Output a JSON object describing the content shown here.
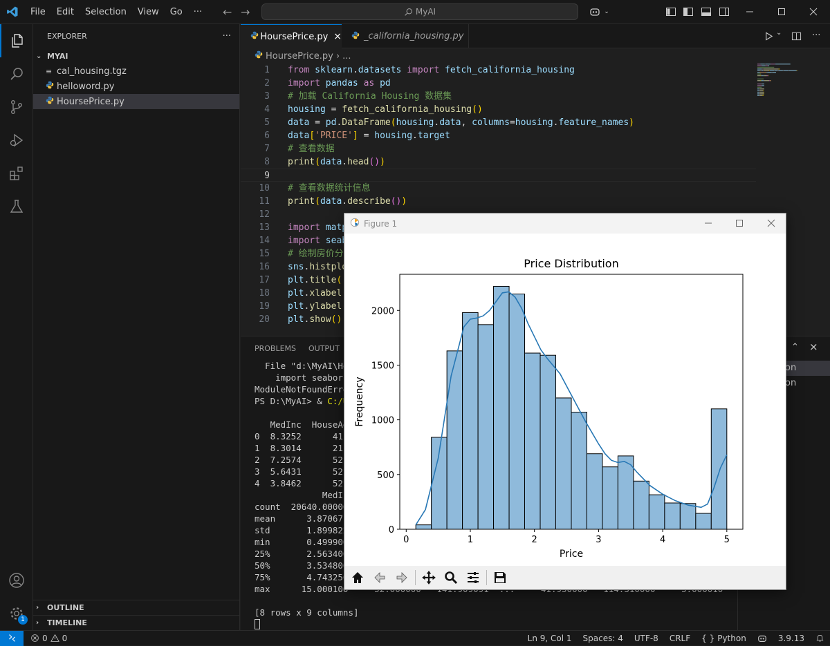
{
  "titlebar": {
    "menu": [
      "File",
      "Edit",
      "Selection",
      "View",
      "Go"
    ],
    "more": "···",
    "search": "MyAI"
  },
  "sidebar": {
    "title": "EXPLORER",
    "more": "···",
    "root": "MYAI",
    "files": [
      {
        "name": "cal_housing.tgz",
        "icon": "archive-file-icon"
      },
      {
        "name": "helloword.py",
        "icon": "python-file-icon"
      },
      {
        "name": "HoursePrice.py",
        "icon": "python-file-icon",
        "selected": true
      }
    ],
    "outline": "OUTLINE",
    "timeline": "TIMELINE",
    "settings_badge": "1"
  },
  "tabs": [
    {
      "label": "HoursePrice.py",
      "active": true
    },
    {
      "label": "_california_housing.py",
      "active": false
    }
  ],
  "breadcrumb": {
    "file": "HoursePrice.py",
    "rest": "..."
  },
  "editor": {
    "active_line": 9,
    "lines": [
      [
        [
          "kw",
          "from "
        ],
        [
          "id",
          "sklearn"
        ],
        [
          "pl",
          "."
        ],
        [
          "id",
          "datasets"
        ],
        [
          "kw",
          " import "
        ],
        [
          "id",
          "fetch_california_housing"
        ]
      ],
      [
        [
          "kw",
          "import "
        ],
        [
          "id",
          "pandas"
        ],
        [
          "kw",
          " as "
        ],
        [
          "id",
          "pd"
        ]
      ],
      [
        [
          "cm",
          "# 加载 California Housing 数据集"
        ]
      ],
      [
        [
          "id",
          "housing"
        ],
        [
          "pl",
          " = "
        ],
        [
          "fn",
          "fetch_california_housing"
        ],
        [
          "br",
          "()"
        ]
      ],
      [
        [
          "id",
          "data"
        ],
        [
          "pl",
          " = "
        ],
        [
          "id",
          "pd"
        ],
        [
          "pl",
          "."
        ],
        [
          "fn",
          "DataFrame"
        ],
        [
          "br",
          "("
        ],
        [
          "id",
          "housing"
        ],
        [
          "pl",
          "."
        ],
        [
          "id",
          "data"
        ],
        [
          "pl",
          ", "
        ],
        [
          "id",
          "columns"
        ],
        [
          "pl",
          "="
        ],
        [
          "id",
          "housing"
        ],
        [
          "pl",
          "."
        ],
        [
          "id",
          "feature_names"
        ],
        [
          "br",
          ")"
        ]
      ],
      [
        [
          "id",
          "data"
        ],
        [
          "br",
          "["
        ],
        [
          "str",
          "'PRICE'"
        ],
        [
          "br",
          "]"
        ],
        [
          "pl",
          " = "
        ],
        [
          "id",
          "housing"
        ],
        [
          "pl",
          "."
        ],
        [
          "id",
          "target"
        ]
      ],
      [
        [
          "cm",
          "# 查看数据"
        ]
      ],
      [
        [
          "fn",
          "print"
        ],
        [
          "br",
          "("
        ],
        [
          "id",
          "data"
        ],
        [
          "pl",
          "."
        ],
        [
          "fn",
          "head"
        ],
        [
          "br2",
          "()"
        ],
        [
          "br",
          ")"
        ]
      ],
      [],
      [
        [
          "cm",
          "# 查看数据统计信息"
        ]
      ],
      [
        [
          "fn",
          "print"
        ],
        [
          "br",
          "("
        ],
        [
          "id",
          "data"
        ],
        [
          "pl",
          "."
        ],
        [
          "fn",
          "describe"
        ],
        [
          "br2",
          "()"
        ],
        [
          "br",
          ")"
        ]
      ],
      [],
      [
        [
          "kw",
          "import "
        ],
        [
          "id",
          "matp"
        ]
      ],
      [
        [
          "kw",
          "import "
        ],
        [
          "id",
          "seab"
        ]
      ],
      [
        [
          "cm",
          "# 绘制房价分"
        ]
      ],
      [
        [
          "id",
          "sns"
        ],
        [
          "pl",
          "."
        ],
        [
          "fn",
          "histplo"
        ]
      ],
      [
        [
          "id",
          "plt"
        ],
        [
          "pl",
          "."
        ],
        [
          "fn",
          "title"
        ],
        [
          "br",
          "("
        ]
      ],
      [
        [
          "id",
          "plt"
        ],
        [
          "pl",
          "."
        ],
        [
          "fn",
          "xlabel"
        ],
        [
          "br",
          "("
        ]
      ],
      [
        [
          "id",
          "plt"
        ],
        [
          "pl",
          "."
        ],
        [
          "fn",
          "ylabel"
        ],
        [
          "br",
          "("
        ]
      ],
      [
        [
          "id",
          "plt"
        ],
        [
          "pl",
          "."
        ],
        [
          "fn",
          "show"
        ],
        [
          "br",
          "()"
        ]
      ]
    ]
  },
  "panel": {
    "tabs": [
      "PROBLEMS",
      "OUTPUT"
    ],
    "terminal_lines": [
      "  File \"d:\\MyAI\\Hou",
      "    import seaborn",
      "ModuleNotFoundError",
      "PS D:\\MyAI> & C:/Us",
      "",
      "   MedInc  HouseAge",
      "0  8.3252      41.0",
      "1  8.3014      21.0",
      "2  7.2574      52.0",
      "3  5.6431      52.0",
      "4  3.8462      52.0",
      "             MedInc",
      "count  20640.000000",
      "mean      3.870671",
      "std       1.899822",
      "min       0.499900",
      "25%       2.563400",
      "50%       3.534800",
      "75%       4.743250",
      "max      15.000100     52.000000   141.909091  ...     41.950000   114.310000     5.000010",
      "",
      "[8 rows x 9 columns]"
    ],
    "side_items": [
      "on",
      "on"
    ]
  },
  "figure": {
    "title": "Figure 1",
    "toolbar": [
      "home-icon",
      "back-icon",
      "forward-icon",
      "pan-icon",
      "zoom-icon",
      "configure-icon",
      "save-icon"
    ]
  },
  "chart_data": {
    "type": "bar",
    "title": "Price Distribution",
    "xlabel": "Price",
    "ylabel": "Frequency",
    "xlim": [
      -0.1,
      5.25
    ],
    "ylim": [
      0,
      2330
    ],
    "xticks": [
      "0",
      "1",
      "2",
      "3",
      "4",
      "5"
    ],
    "yticks": [
      "0",
      "500",
      "1000",
      "1500",
      "2000"
    ],
    "bin_edges": [
      0.15,
      0.392,
      0.635,
      0.877,
      1.12,
      1.362,
      1.605,
      1.847,
      2.09,
      2.332,
      2.575,
      2.817,
      3.06,
      3.302,
      3.545,
      3.787,
      4.03,
      4.272,
      4.515,
      4.757,
      5.0
    ],
    "values": [
      40,
      840,
      1630,
      1980,
      1870,
      2220,
      2150,
      1610,
      1590,
      1200,
      1070,
      690,
      570,
      670,
      440,
      315,
      240,
      235,
      145,
      1100
    ],
    "kde_x": [
      0.15,
      0.3,
      0.5,
      0.7,
      0.9,
      1.0,
      1.1,
      1.2,
      1.3,
      1.4,
      1.5,
      1.6,
      1.7,
      1.8,
      1.9,
      2.0,
      2.1,
      2.2,
      2.4,
      2.6,
      2.8,
      3.0,
      3.1,
      3.2,
      3.3,
      3.4,
      3.5,
      3.6,
      3.8,
      4.0,
      4.2,
      4.4,
      4.6,
      4.7,
      4.8,
      4.9,
      5.0
    ],
    "kde_y": [
      40,
      180,
      650,
      1400,
      1850,
      1920,
      1930,
      1950,
      2000,
      2080,
      2160,
      2170,
      2120,
      2020,
      1880,
      1760,
      1640,
      1560,
      1420,
      1200,
      980,
      780,
      690,
      630,
      610,
      620,
      590,
      520,
      400,
      320,
      260,
      220,
      200,
      230,
      380,
      560,
      680
    ],
    "bar_color": "#8fbadb",
    "line_color": "#2878b5"
  },
  "status": {
    "errors": "0",
    "warnings": "0",
    "position": "Ln 9, Col 1",
    "spaces": "Spaces: 4",
    "encoding": "UTF-8",
    "eol": "CRLF",
    "braces": "{ }",
    "language": "Python",
    "version": "3.9.13"
  }
}
